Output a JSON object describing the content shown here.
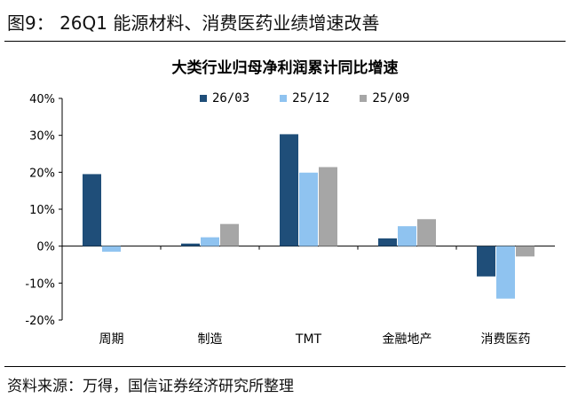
{
  "figure_title": "图9： 26Q1 能源材料、消费医药业绩增速改善",
  "source_note": "资料来源：万得，国信证券经济研究所整理",
  "chart_data": {
    "type": "bar",
    "title": "大类行业归母净利润累计同比增速",
    "categories": [
      "周期",
      "制造",
      "TMT",
      "金融地产",
      "消费医药"
    ],
    "series": [
      {
        "name": "26/03",
        "color": "#1F4E79",
        "values": [
          19.5,
          0.7,
          30.3,
          2.1,
          -8.2
        ]
      },
      {
        "name": "25/12",
        "color": "#8FC3F0",
        "values": [
          -1.5,
          2.4,
          19.9,
          5.4,
          -14.2
        ]
      },
      {
        "name": "25/09",
        "color": "#A6A6A6",
        "values": [
          null,
          6.0,
          21.4,
          7.3,
          -2.8
        ]
      }
    ],
    "yticks": [
      "40%",
      "30%",
      "20%",
      "10%",
      "0%",
      "-10%",
      "-20%"
    ],
    "ylim": [
      -20,
      40
    ],
    "legend_position": "top-center",
    "grid": false
  }
}
